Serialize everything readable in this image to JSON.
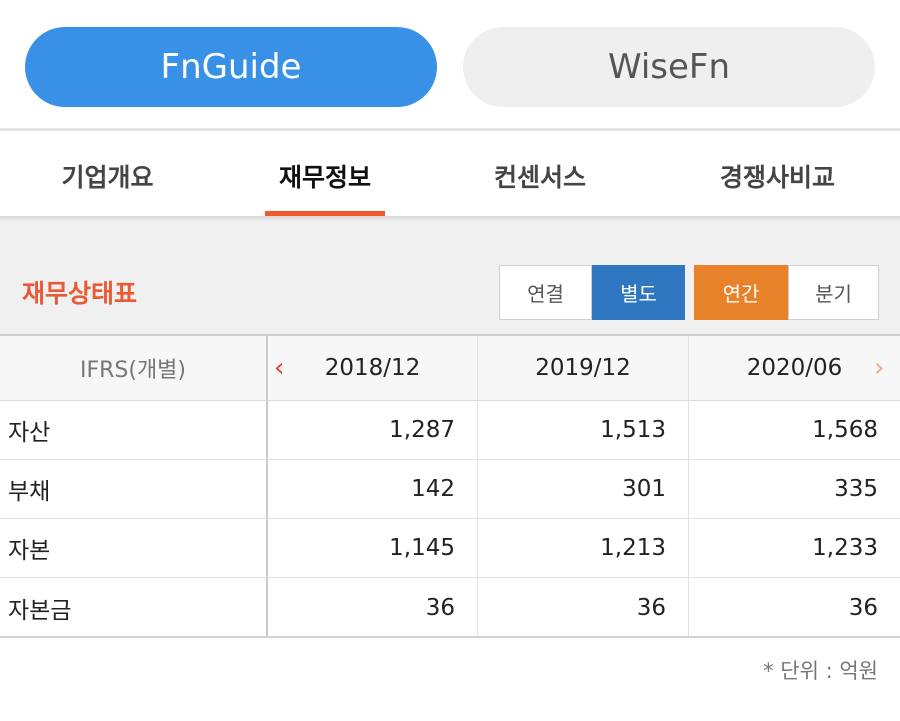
{
  "top_buttons": {
    "fnguide": "FnGuide",
    "wisefn": "WiseFn"
  },
  "tabs": [
    {
      "label": "기업개요",
      "active": false
    },
    {
      "label": "재무정보",
      "active": true
    },
    {
      "label": "컨센서스",
      "active": false
    },
    {
      "label": "경쟁사비교",
      "active": false
    }
  ],
  "section": {
    "title": "재무상태표",
    "scope_toggle": {
      "consolidated": "연결",
      "separate": "별도",
      "selected": "별도"
    },
    "period_toggle": {
      "annual": "연간",
      "quarterly": "분기",
      "selected": "연간"
    }
  },
  "table": {
    "header_label": "IFRS(개별)",
    "periods": [
      "2018/12",
      "2019/12",
      "2020/06"
    ],
    "prev_icon": "chevron-left-icon",
    "next_icon": "chevron-right-icon",
    "rows": [
      {
        "label": "자산",
        "values": [
          "1,287",
          "1,513",
          "1,568"
        ]
      },
      {
        "label": "부채",
        "values": [
          "142",
          "301",
          "335"
        ]
      },
      {
        "label": "자본",
        "values": [
          "1,145",
          "1,213",
          "1,233"
        ]
      },
      {
        "label": "자본금",
        "values": [
          "36",
          "36",
          "36"
        ]
      }
    ]
  },
  "footer": {
    "unit_note": "* 단위 : 억원"
  },
  "colors": {
    "fnguide_blue": "#3891e6",
    "accent_orange": "#e8822a",
    "tab_underline": "#f05a28",
    "title_red": "#ea5a35",
    "separate_blue": "#2f78c1"
  }
}
